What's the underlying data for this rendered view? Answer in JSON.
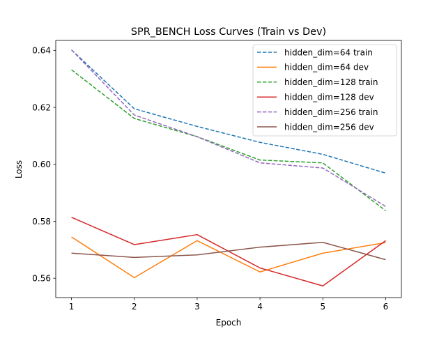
{
  "chart_data": {
    "type": "line",
    "title": "SPR_BENCH Loss Curves (Train vs Dev)",
    "xlabel": "Epoch",
    "ylabel": "Loss",
    "x": [
      1,
      2,
      3,
      4,
      5,
      6
    ],
    "xlim": [
      0.75,
      6.25
    ],
    "ylim": [
      0.5532,
      0.6435
    ],
    "xticks": [
      1,
      2,
      3,
      4,
      5,
      6
    ],
    "yticks": [
      0.56,
      0.58,
      0.6,
      0.62,
      0.64
    ],
    "ytick_labels": [
      "0.56",
      "0.58",
      "0.60",
      "0.62",
      "0.64"
    ],
    "grid": false,
    "legend_position": "top-right",
    "series": [
      {
        "name": "hidden_dim=64 train",
        "color": "#1f77b4",
        "style": "dashed",
        "values": [
          0.6402,
          0.6195,
          0.6133,
          0.6077,
          0.6035,
          0.5969
        ]
      },
      {
        "name": "hidden_dim=64 dev",
        "color": "#ff7f0e",
        "style": "solid",
        "values": [
          0.5745,
          0.5602,
          0.5732,
          0.5622,
          0.5688,
          0.5725
        ]
      },
      {
        "name": "hidden_dim=128 train",
        "color": "#2ca02c",
        "style": "dashed",
        "values": [
          0.6332,
          0.6161,
          0.6097,
          0.6015,
          0.6005,
          0.5837
        ]
      },
      {
        "name": "hidden_dim=128 dev",
        "color": "#d62728",
        "style": "solid",
        "values": [
          0.5814,
          0.5718,
          0.5753,
          0.5636,
          0.5573,
          0.5732
        ]
      },
      {
        "name": "hidden_dim=256 train",
        "color": "#9467bd",
        "style": "dashed",
        "values": [
          0.6402,
          0.6173,
          0.6097,
          0.6005,
          0.5987,
          0.5852
        ]
      },
      {
        "name": "hidden_dim=256 dev",
        "color": "#8c564b",
        "style": "solid",
        "values": [
          0.5688,
          0.5673,
          0.5682,
          0.5709,
          0.5726,
          0.5665
        ]
      }
    ]
  }
}
